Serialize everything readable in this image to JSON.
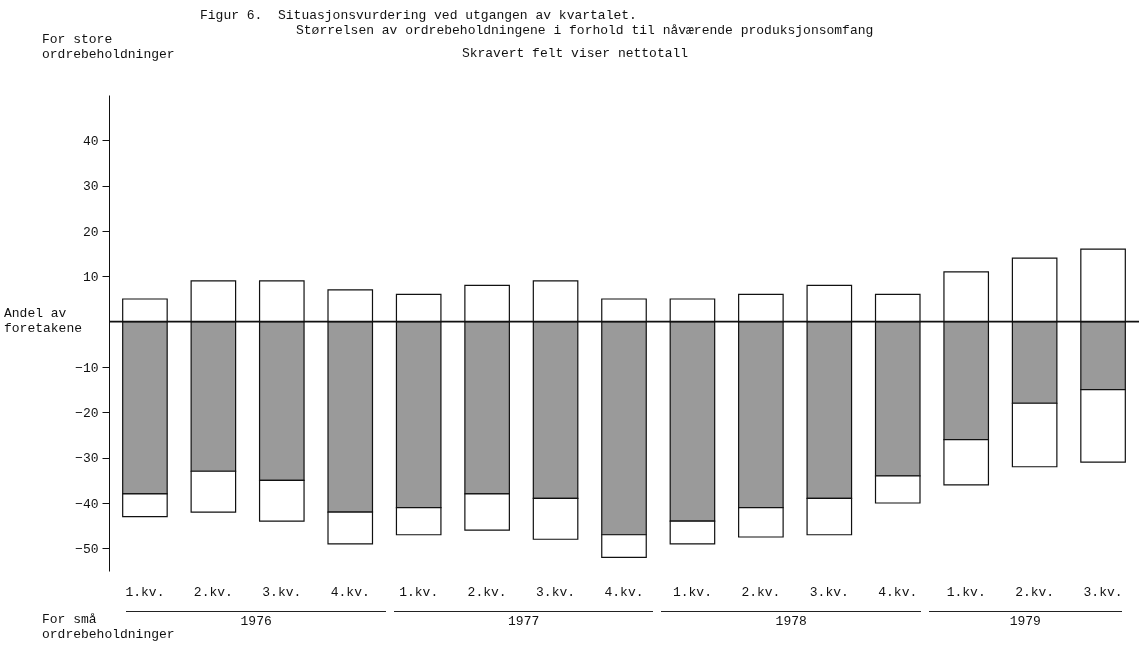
{
  "chart_data": {
    "type": "bar",
    "title": "Figur 6.  Situasjonsvurdering ved utgangen av kvartalet.",
    "subtitle": "Størrelsen av ordrebeholdningene i forhold til nåværende produksjonsomfang",
    "ylabel": "Andel av foretakene",
    "annotations": [
      "Skravert felt viser nettotall",
      "For store ordrebeholdninger",
      "For små ordrebeholdninger",
      "1976",
      "1977",
      "1978",
      "1979"
    ],
    "categories": [
      "1.kv.",
      "2.kv.",
      "3.kv.",
      "4.kv.",
      "1.kv.",
      "2.kv.",
      "3.kv.",
      "4.kv.",
      "1.kv.",
      "2.kv.",
      "3.kv.",
      "4.kv.",
      "1.kv.",
      "2.kv.",
      "3.kv."
    ],
    "stacked": true,
    "series": [
      {
        "color": "#ffffff",
        "values": [
          5,
          9,
          9,
          7,
          6,
          8,
          9,
          5,
          5,
          6,
          8,
          6,
          11,
          14,
          16
        ]
      },
      {
        "color": "#9a9a9a",
        "values": [
          -38,
          -33,
          -35,
          -42,
          -41,
          -38,
          -39,
          -47,
          -44,
          -41,
          -39,
          -34,
          -26,
          -18,
          -15
        ]
      },
      {
        "color": "#ffffff",
        "values": [
          -5,
          -9,
          -9,
          -7,
          -6,
          -8,
          -9,
          -5,
          -5,
          -6.5,
          -8,
          -6,
          -10,
          -14,
          -16
        ]
      }
    ],
    "ylim": [
      -55,
      50
    ],
    "yticks": [
      -50,
      -40,
      -30,
      -20,
      -10,
      10,
      20,
      30,
      40
    ],
    "ref_lines": [
      {
        "axis": "y",
        "value": 0
      }
    ],
    "grid": false
  }
}
